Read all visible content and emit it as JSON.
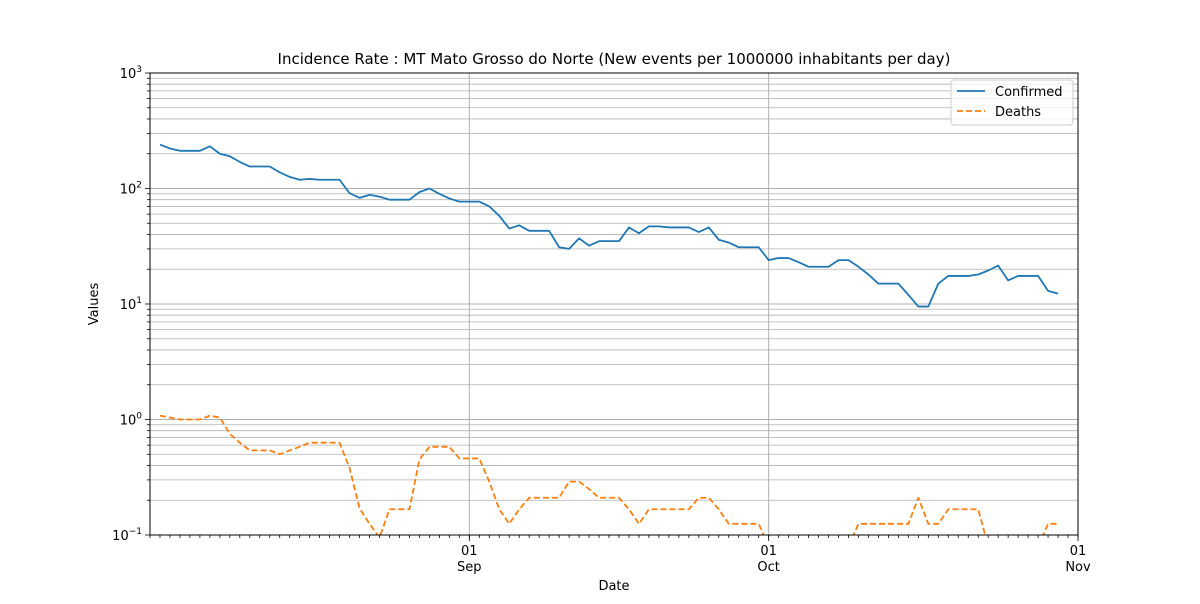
{
  "chart_data": {
    "type": "line",
    "title": "Incidence Rate : MT Mato Grosso do Norte (New events per 1000000 inhabitants per day)",
    "xlabel": "Date",
    "ylabel": "Values",
    "yscale": "log",
    "ylim": [
      0.1,
      1000
    ],
    "xlim": [
      "2020-07-31",
      "2020-11-01"
    ],
    "grid": true,
    "legend_position": "top-right",
    "x_ticks": [
      {
        "date": "2020-09-01",
        "day": "01",
        "month": "Sep"
      },
      {
        "date": "2020-10-01",
        "day": "01",
        "month": "Oct"
      },
      {
        "date": "2020-11-01",
        "day": "01",
        "month": "Nov"
      }
    ],
    "y_ticks": [
      {
        "value": 0.1,
        "base": "10",
        "exp": "−1"
      },
      {
        "value": 1,
        "base": "10",
        "exp": "0"
      },
      {
        "value": 10,
        "base": "10",
        "exp": "1"
      },
      {
        "value": 100,
        "base": "10",
        "exp": "2"
      },
      {
        "value": 1000,
        "base": "10",
        "exp": "3"
      }
    ],
    "start_date": "2020-08-01",
    "series": [
      {
        "name": "Confirmed",
        "color": "#1f77b4",
        "style": "solid",
        "values": [
          240,
          222,
          212,
          212,
          212,
          232,
          200,
          190,
          170,
          155,
          155,
          155,
          138,
          126,
          119,
          121,
          119,
          119,
          119,
          91,
          83,
          88,
          85,
          80,
          80,
          80,
          93,
          100,
          90,
          82,
          77,
          77,
          77,
          70,
          58,
          45,
          48,
          43,
          43,
          43,
          31,
          30,
          37,
          32,
          35,
          35,
          35,
          46,
          41,
          47,
          47,
          46,
          46,
          46,
          42,
          46,
          36,
          34,
          31,
          31,
          31,
          24,
          25,
          25,
          23,
          21,
          21,
          21,
          24,
          24,
          21,
          18,
          15,
          15,
          15,
          12,
          9.5,
          9.5,
          15,
          17.5,
          17.5,
          17.5,
          18,
          19.5,
          21.5,
          16,
          17.5,
          17.5,
          17.5,
          13,
          12.3
        ]
      },
      {
        "name": "Deaths",
        "color": "#ff7f0e",
        "style": "dashed",
        "values": [
          1.08,
          1.04,
          1.0,
          1.0,
          1.0,
          1.08,
          1.04,
          0.75,
          0.63,
          0.54,
          0.54,
          0.54,
          0.5,
          0.54,
          0.58,
          0.63,
          0.63,
          0.63,
          0.63,
          0.38,
          0.17,
          0.125,
          0.095,
          0.167,
          0.167,
          0.167,
          0.45,
          0.58,
          0.58,
          0.58,
          0.46,
          0.46,
          0.46,
          0.29,
          0.167,
          0.125,
          0.167,
          0.21,
          0.21,
          0.21,
          0.21,
          0.29,
          0.29,
          0.25,
          0.21,
          0.21,
          0.21,
          0.167,
          0.125,
          0.167,
          0.167,
          0.167,
          0.167,
          0.167,
          0.21,
          0.21,
          0.167,
          0.125,
          0.125,
          0.125,
          0.125,
          0.08,
          null,
          null,
          null,
          null,
          null,
          null,
          null,
          0.08,
          0.125,
          0.125,
          0.125,
          0.125,
          0.125,
          0.125,
          0.21,
          0.125,
          0.125,
          0.167,
          0.167,
          0.167,
          0.167,
          0.08,
          null,
          null,
          null,
          null,
          0.08,
          0.125,
          0.125
        ]
      }
    ]
  }
}
